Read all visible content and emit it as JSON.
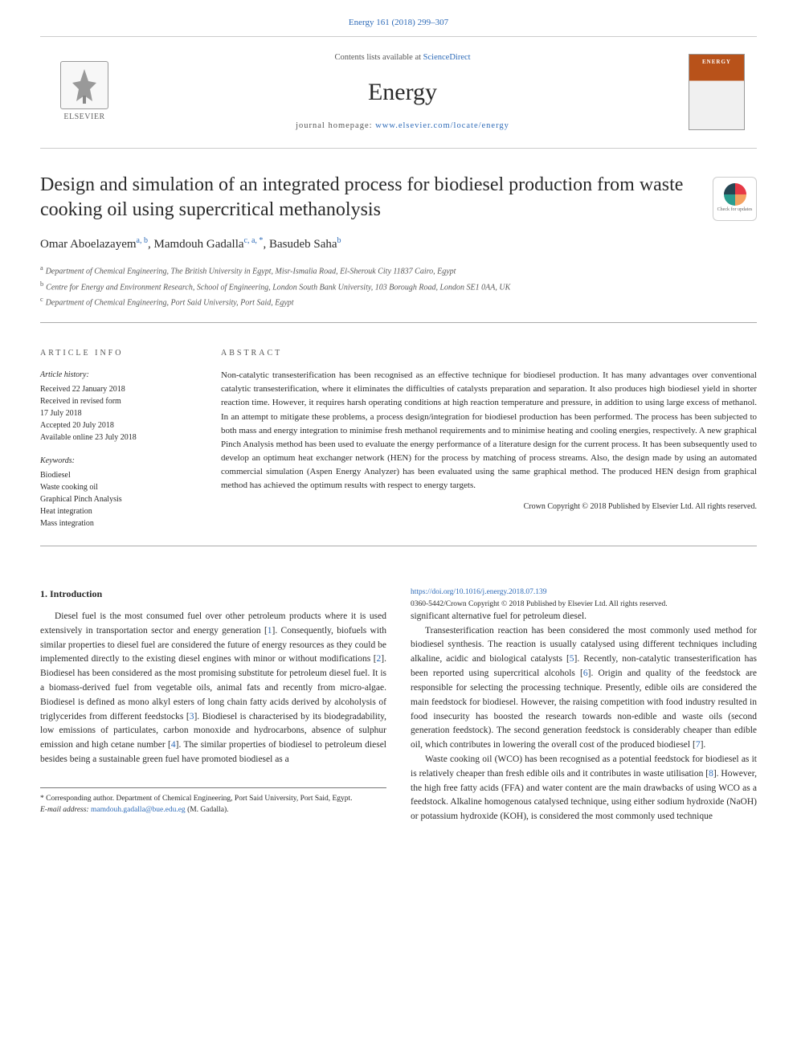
{
  "top_citation": "Energy 161 (2018) 299–307",
  "header": {
    "contents_line_prefix": "Contents lists available at ",
    "contents_link": "ScienceDirect",
    "journal_name": "Energy",
    "homepage_prefix": "journal homepage: ",
    "homepage_url": "www.elsevier.com/locate/energy",
    "elsevier_label": "ELSEVIER",
    "cover_title": "ENERGY"
  },
  "article": {
    "title": "Design and simulation of an integrated process for biodiesel production from waste cooking oil using supercritical methanolysis",
    "check_updates_label": "Check for updates",
    "authors_html": [
      {
        "name": "Omar Aboelazayem",
        "sup": "a, b"
      },
      {
        "name": "Mamdouh Gadalla",
        "sup": "c, a, *"
      },
      {
        "name": "Basudeb Saha",
        "sup": "b"
      }
    ],
    "affiliations": [
      {
        "marker": "a",
        "text": "Department of Chemical Engineering, The British University in Egypt, Misr-Ismalia Road, El-Sherouk City 11837 Cairo, Egypt"
      },
      {
        "marker": "b",
        "text": "Centre for Energy and Environment Research, School of Engineering, London South Bank University, 103 Borough Road, London SE1 0AA, UK"
      },
      {
        "marker": "c",
        "text": "Department of Chemical Engineering, Port Said University, Port Said, Egypt"
      }
    ]
  },
  "info": {
    "heading": "ARTICLE INFO",
    "history_label": "Article history:",
    "history": [
      "Received 22 January 2018",
      "Received in revised form",
      "17 July 2018",
      "Accepted 20 July 2018",
      "Available online 23 July 2018"
    ],
    "keywords_label": "Keywords:",
    "keywords": [
      "Biodiesel",
      "Waste cooking oil",
      "Graphical Pinch Analysis",
      "Heat integration",
      "Mass integration"
    ]
  },
  "abstract": {
    "heading": "ABSTRACT",
    "text": "Non-catalytic transesterification has been recognised as an effective technique for biodiesel production. It has many advantages over conventional catalytic transesterification, where it eliminates the difficulties of catalysts preparation and separation. It also produces high biodiesel yield in shorter reaction time. However, it requires harsh operating conditions at high reaction temperature and pressure, in addition to using large excess of methanol. In an attempt to mitigate these problems, a process design/integration for biodiesel production has been performed. The process has been subjected to both mass and energy integration to minimise fresh methanol requirements and to minimise heating and cooling energies, respectively. A new graphical Pinch Analysis method has been used to evaluate the energy performance of a literature design for the current process. It has been subsequently used to develop an optimum heat exchanger network (HEN) for the process by matching of process streams. Also, the design made by using an automated commercial simulation (Aspen Energy Analyzer) has been evaluated using the same graphical method. The produced HEN design from graphical method has achieved the optimum results with respect to energy targets.",
    "copyright": "Crown Copyright © 2018 Published by Elsevier Ltd. All rights reserved."
  },
  "body": {
    "section1_title": "1. Introduction",
    "col1_paras": [
      "Diesel fuel is the most consumed fuel over other petroleum products where it is used extensively in transportation sector and energy generation [1]. Consequently, biofuels with similar properties to diesel fuel are considered the future of energy resources as they could be implemented directly to the existing diesel engines with minor or without modifications [2]. Biodiesel has been considered as the most promising substitute for petroleum diesel fuel. It is a biomass-derived fuel from vegetable oils, animal fats and recently from micro-algae. Biodiesel is defined as mono alkyl esters of long chain fatty acids derived by alcoholysis of triglycerides from different feedstocks [3]. Biodiesel is characterised by its biodegradability, low emissions of particulates, carbon monoxide and hydrocarbons, absence of sulphur emission and high cetane number [4]. The similar properties of biodiesel to petroleum diesel besides being a sustainable green fuel have promoted biodiesel as a"
    ],
    "col2_paras": [
      "significant alternative fuel for petroleum diesel.",
      "Transesterification reaction has been considered the most commonly used method for biodiesel synthesis. The reaction is usually catalysed using different techniques including alkaline, acidic and biological catalysts [5]. Recently, non-catalytic transesterification has been reported using supercritical alcohols [6]. Origin and quality of the feedstock are responsible for selecting the processing technique. Presently, edible oils are considered the main feedstock for biodiesel. However, the raising competition with food industry resulted in food insecurity has boosted the research towards non-edible and waste oils (second generation feedstock). The second generation feedstock is considerably cheaper than edible oil, which contributes in lowering the overall cost of the produced biodiesel [7].",
      "Waste cooking oil (WCO) has been recognised as a potential feedstock for biodiesel as it is relatively cheaper than fresh edible oils and it contributes in waste utilisation [8]. However, the high free fatty acids (FFA) and water content are the main drawbacks of using WCO as a feedstock. Alkaline homogenous catalysed technique, using either sodium hydroxide (NaOH) or potassium hydroxide (KOH), is considered the most commonly used technique"
    ]
  },
  "footer": {
    "corresponding": "* Corresponding author. Department of Chemical Engineering, Port Said University, Port Said, Egypt.",
    "email_label": "E-mail address:",
    "email_val": "mamdouh.gadalla@bue.edu.eg",
    "email_suffix": "(M. Gadalla).",
    "doi": "https://doi.org/10.1016/j.energy.2018.07.139",
    "copyright": "0360-5442/Crown Copyright © 2018 Published by Elsevier Ltd. All rights reserved."
  },
  "colors": {
    "link": "#2e6bb8",
    "text": "#2a2a2a",
    "muted": "#555",
    "border": "#ccc",
    "cover_orange": "#b8521a"
  }
}
